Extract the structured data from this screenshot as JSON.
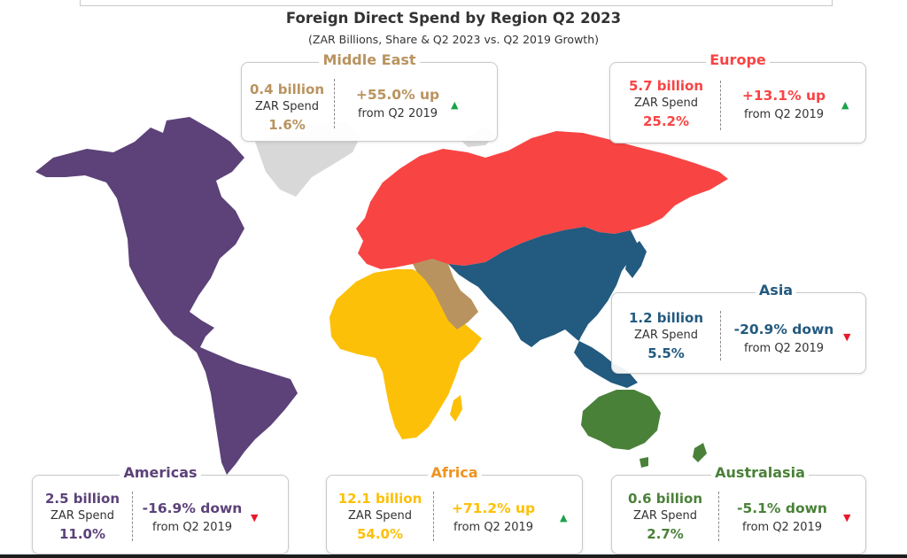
{
  "title": "Foreign Direct Spend by Region Q2 2023",
  "subtitle": "(ZAR Billions, Share & Q2 2023 vs. Q2 2019 Growth)",
  "colors": {
    "americas": "#5c4278",
    "europe": "#f94444",
    "asia": "#235a7f",
    "africa": "#fdc008",
    "middle_east": "#b9935f",
    "australasia": "#4a8139",
    "greenland": "#d8d8d8",
    "up_arrow": "#1aa34a",
    "down_arrow": "#e8192c"
  },
  "icons": {
    "up": "triangle-up-icon",
    "down": "triangle-down-icon"
  },
  "labels": {
    "spend": "ZAR Spend",
    "from": "from Q2 2019",
    "up_glyph": "▲",
    "down_glyph": "▼"
  },
  "regions": {
    "middle_east": {
      "name": "Middle East",
      "amount": "0.4 billion",
      "share": "1.6%",
      "growth": "+55.0% up",
      "direction": "up"
    },
    "europe": {
      "name": "Europe",
      "amount": "5.7 billion",
      "share": "25.2%",
      "growth": "+13.1% up",
      "direction": "up"
    },
    "asia": {
      "name": "Asia",
      "amount": "1.2 billion",
      "share": "5.5%",
      "growth": "-20.9% down",
      "direction": "down"
    },
    "americas": {
      "name": "Americas",
      "amount": "2.5 billion",
      "share": "11.0%",
      "growth": "-16.9% down",
      "direction": "down"
    },
    "africa": {
      "name": "Africa",
      "amount": "12.1 billion",
      "share": "54.0%",
      "growth": "+71.2% up",
      "direction": "up"
    },
    "australasia": {
      "name": "Australasia",
      "amount": "0.6 billion",
      "share": "2.7%",
      "growth": "-5.1% down",
      "direction": "down"
    }
  },
  "chart_data": {
    "type": "map",
    "title": "Foreign Direct Spend by Region Q2 2023",
    "subtitle": "(ZAR Billions, Share & Q2 2023 vs. Q2 2019 Growth)",
    "series": [
      {
        "name": "Middle East",
        "spend_zar_billion": 0.4,
        "share_pct": 1.6,
        "growth_vs_q2_2019_pct": 55.0
      },
      {
        "name": "Europe",
        "spend_zar_billion": 5.7,
        "share_pct": 25.2,
        "growth_vs_q2_2019_pct": 13.1
      },
      {
        "name": "Asia",
        "spend_zar_billion": 1.2,
        "share_pct": 5.5,
        "growth_vs_q2_2019_pct": -20.9
      },
      {
        "name": "Americas",
        "spend_zar_billion": 2.5,
        "share_pct": 11.0,
        "growth_vs_q2_2019_pct": -16.9
      },
      {
        "name": "Africa",
        "spend_zar_billion": 12.1,
        "share_pct": 54.0,
        "growth_vs_q2_2019_pct": 71.2
      },
      {
        "name": "Australasia",
        "spend_zar_billion": 0.6,
        "share_pct": 2.7,
        "growth_vs_q2_2019_pct": -5.1
      }
    ]
  }
}
